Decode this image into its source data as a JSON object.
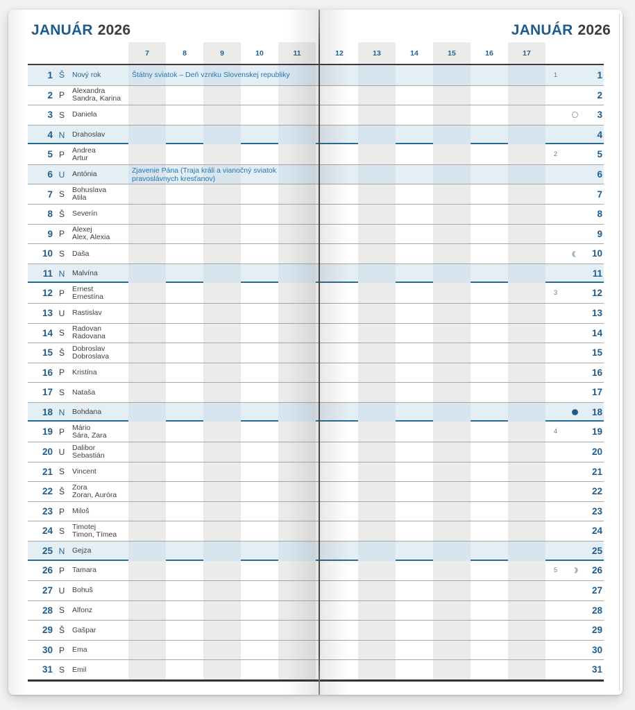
{
  "title": {
    "month": "JANUÁR",
    "year": "2026"
  },
  "left_hours": [
    "7",
    "8",
    "9",
    "10",
    "11"
  ],
  "right_hours": [
    "12",
    "13",
    "14",
    "15",
    "16",
    "17"
  ],
  "colors": {
    "accent_blue": "#1f5c8c",
    "note_blue": "#2676af",
    "sunday_row_bg": "#e4eef5",
    "band_gray": "#ebebe9",
    "band_blue": "#d8e5ef",
    "sunday_border": "#2a6b92",
    "text_dark": "#3f3f3f",
    "moon_dark": "#1d5a84",
    "moon_light": "#9db0c0"
  },
  "moon_icon_names": {
    "full": "full-moon-icon",
    "last": "last-quarter-moon-icon",
    "new": "new-moon-icon",
    "first": "first-quarter-moon-icon"
  },
  "days": [
    {
      "num": "1",
      "wd": "Š",
      "names": [
        "Nový rok"
      ],
      "type": "holiday",
      "name_blue": true,
      "note": [
        "Štátny sviatok – Deň vzniku Slovenskej republiky"
      ],
      "week": "1"
    },
    {
      "num": "2",
      "wd": "P",
      "names": [
        "Alexandra",
        "Sandra, Karina"
      ]
    },
    {
      "num": "3",
      "wd": "S",
      "names": [
        "Daniela"
      ],
      "moon": "full"
    },
    {
      "num": "4",
      "wd": "N",
      "names": [
        "Drahoslav"
      ],
      "type": "sunday"
    },
    {
      "num": "5",
      "wd": "P",
      "names": [
        "Andrea",
        "Artur"
      ],
      "week": "2"
    },
    {
      "num": "6",
      "wd": "U",
      "names": [
        "Antónia"
      ],
      "type": "holiday",
      "note": [
        "Zjavenie Pána (Traja králi a vianočný sviatok",
        "pravoslávnych kresťanov)"
      ]
    },
    {
      "num": "7",
      "wd": "S",
      "names": [
        "Bohuslava",
        "Atila"
      ]
    },
    {
      "num": "8",
      "wd": "Š",
      "names": [
        "Severín"
      ]
    },
    {
      "num": "9",
      "wd": "P",
      "names": [
        "Alexej",
        "Alex, Alexia"
      ]
    },
    {
      "num": "10",
      "wd": "S",
      "names": [
        "Daša"
      ],
      "moon": "last"
    },
    {
      "num": "11",
      "wd": "N",
      "names": [
        "Malvína"
      ],
      "type": "sunday"
    },
    {
      "num": "12",
      "wd": "P",
      "names": [
        "Ernest",
        "Ernestína"
      ],
      "week": "3"
    },
    {
      "num": "13",
      "wd": "U",
      "names": [
        "Rastislav"
      ]
    },
    {
      "num": "14",
      "wd": "S",
      "names": [
        "Radovan",
        "Radovana"
      ]
    },
    {
      "num": "15",
      "wd": "Š",
      "names": [
        "Dobroslav",
        "Dobroslava"
      ]
    },
    {
      "num": "16",
      "wd": "P",
      "names": [
        "Kristína"
      ]
    },
    {
      "num": "17",
      "wd": "S",
      "names": [
        "Nataša"
      ]
    },
    {
      "num": "18",
      "wd": "N",
      "names": [
        "Bohdana"
      ],
      "type": "sunday",
      "moon": "new"
    },
    {
      "num": "19",
      "wd": "P",
      "names": [
        "Mário",
        "Sára, Zara"
      ],
      "week": "4"
    },
    {
      "num": "20",
      "wd": "U",
      "names": [
        "Dalibor",
        "Sebastián"
      ]
    },
    {
      "num": "21",
      "wd": "S",
      "names": [
        "Vincent"
      ]
    },
    {
      "num": "22",
      "wd": "Š",
      "names": [
        "Zora",
        "Zoran, Auróra"
      ]
    },
    {
      "num": "23",
      "wd": "P",
      "names": [
        "Miloš"
      ]
    },
    {
      "num": "24",
      "wd": "S",
      "names": [
        "Timotej",
        "Timon, Tímea"
      ]
    },
    {
      "num": "25",
      "wd": "N",
      "names": [
        "Gejza"
      ],
      "type": "sunday"
    },
    {
      "num": "26",
      "wd": "P",
      "names": [
        "Tamara"
      ],
      "week": "5",
      "moon": "first"
    },
    {
      "num": "27",
      "wd": "U",
      "names": [
        "Bohuš"
      ]
    },
    {
      "num": "28",
      "wd": "S",
      "names": [
        "Alfonz"
      ]
    },
    {
      "num": "29",
      "wd": "Š",
      "names": [
        "Gašpar"
      ]
    },
    {
      "num": "30",
      "wd": "P",
      "names": [
        "Ema"
      ]
    },
    {
      "num": "31",
      "wd": "S",
      "names": [
        "Emil"
      ]
    }
  ]
}
